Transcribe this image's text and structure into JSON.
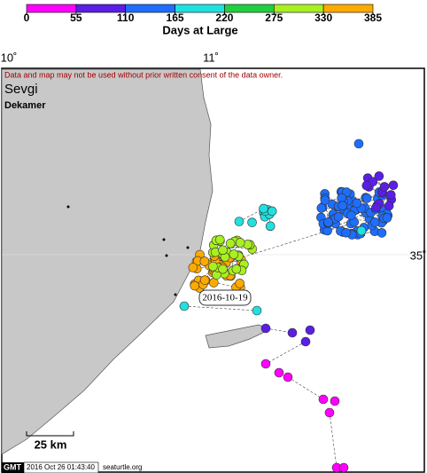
{
  "colorbar": {
    "label": "Days at Large",
    "ticks": [
      0,
      55,
      110,
      165,
      220,
      275,
      330,
      385
    ],
    "colors": [
      "#ff00ff",
      "#5a1ee6",
      "#1e6eff",
      "#20e0e0",
      "#20d040",
      "#a8f020",
      "#ffaa00"
    ]
  },
  "map": {
    "lon_labels": [
      "10˚",
      "11˚"
    ],
    "lat_label": "35˚",
    "disclaimer": "Data and map may not be used without prior written consent of the data owner.",
    "turtle": "Sevgi",
    "sponsor": "Dekamer",
    "date_label": "2016-10-19",
    "scale_label": "25 km"
  },
  "footer": {
    "logo": "GMT",
    "timestamp": "2016 Oct 26 01:43:40",
    "site": "seaturtle.org"
  }
}
